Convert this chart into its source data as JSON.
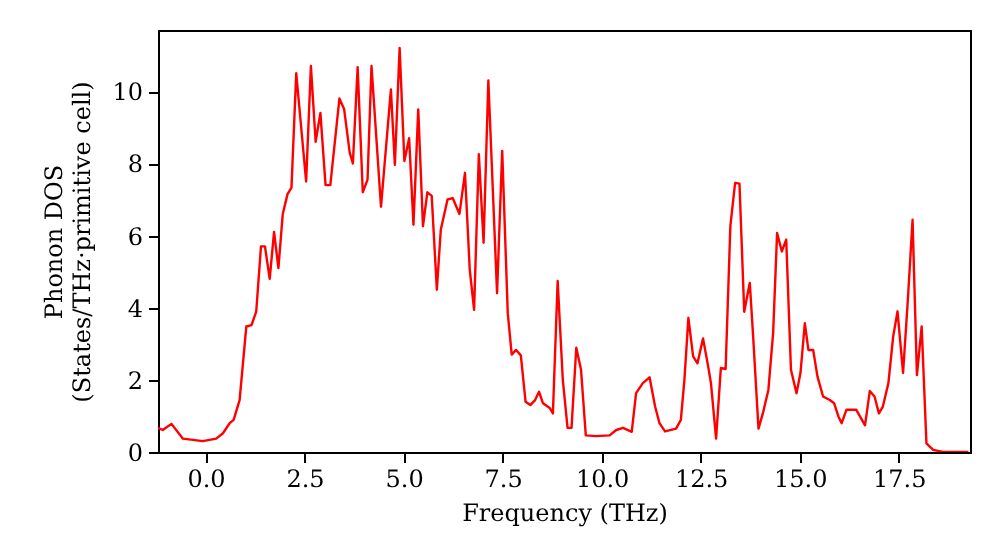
{
  "chart_data": {
    "type": "line",
    "xlabel": "Frequency (THz)",
    "ylabel": "Phonon DOS\n(States/THz·primitive cell)",
    "xlim": [
      -1.2,
      19.3
    ],
    "ylim": [
      0,
      11.7
    ],
    "xticks": [
      {
        "value": 0,
        "label": "0.0"
      },
      {
        "value": 2.5,
        "label": "2.5"
      },
      {
        "value": 5,
        "label": "5.0"
      },
      {
        "value": 7.5,
        "label": "7.5"
      },
      {
        "value": 10,
        "label": "10.0"
      },
      {
        "value": 12.5,
        "label": "12.5"
      },
      {
        "value": 15,
        "label": "15.0"
      },
      {
        "value": 17.5,
        "label": "17.5"
      }
    ],
    "yticks": [
      0,
      2,
      4,
      6,
      8,
      10
    ],
    "grid": false,
    "marker": "none",
    "line_style": "solid",
    "series": [
      {
        "color": "#ff0000",
        "x": [
          -1.2,
          -1.08,
          -0.86,
          -0.57,
          -0.07,
          0.27,
          0.44,
          0.61,
          0.71,
          0.86,
          1.03,
          1.16,
          1.28,
          1.4,
          1.5,
          1.62,
          1.73,
          1.84,
          1.95,
          2.07,
          2.17,
          2.29,
          2.54,
          2.66,
          2.78,
          2.9,
          3.03,
          3.15,
          3.38,
          3.5,
          3.64,
          3.72,
          3.84,
          3.97,
          4.09,
          4.19,
          4.43,
          4.68,
          4.78,
          4.9,
          5.02,
          5.14,
          5.25,
          5.37,
          5.49,
          5.6,
          5.71,
          5.84,
          5.94,
          6.11,
          6.24,
          6.41,
          6.55,
          6.67,
          6.78,
          6.9,
          7.02,
          7.14,
          7.36,
          7.49,
          7.63,
          7.73,
          7.84,
          7.96,
          8.08,
          8.2,
          8.32,
          8.42,
          8.52,
          8.69,
          8.77,
          8.89,
          9.02,
          9.14,
          9.24,
          9.36,
          9.48,
          9.6,
          9.86,
          10.2,
          10.37,
          10.54,
          10.76,
          10.87,
          11.04,
          11.21,
          11.35,
          11.46,
          11.6,
          11.88,
          12.0,
          12.09,
          12.19,
          12.31,
          12.42,
          12.56,
          12.69,
          12.76,
          12.89,
          13.01,
          13.13,
          13.25,
          13.37,
          13.48,
          13.6,
          13.74,
          13.82,
          13.96,
          14.07,
          14.21,
          14.33,
          14.43,
          14.55,
          14.66,
          14.78,
          14.92,
          15.02,
          15.13,
          15.22,
          15.34,
          15.45,
          15.59,
          15.76,
          15.87,
          15.98,
          16.06,
          16.18,
          16.43,
          16.65,
          16.77,
          16.89,
          17.0,
          17.1,
          17.24,
          17.36,
          17.47,
          17.61,
          17.73,
          17.85,
          17.96,
          18.08,
          18.2,
          18.37,
          18.62,
          19.26
        ],
        "values": [
          0.67,
          0.61,
          0.78,
          0.37,
          0.3,
          0.37,
          0.52,
          0.8,
          0.89,
          1.44,
          3.48,
          3.52,
          3.89,
          5.7,
          5.7,
          4.8,
          6.1,
          5.1,
          6.6,
          7.15,
          7.33,
          10.5,
          7.5,
          10.7,
          8.6,
          9.4,
          7.4,
          7.4,
          9.8,
          9.5,
          8.3,
          8.0,
          10.67,
          7.2,
          7.55,
          10.7,
          6.8,
          10.05,
          7.96,
          11.2,
          8.07,
          8.7,
          6.3,
          9.5,
          6.26,
          7.2,
          7.1,
          4.5,
          6.17,
          7.0,
          7.04,
          6.6,
          7.74,
          5.06,
          3.94,
          8.26,
          5.8,
          10.3,
          4.4,
          8.35,
          3.85,
          2.7,
          2.83,
          2.68,
          1.39,
          1.3,
          1.44,
          1.67,
          1.35,
          1.22,
          1.07,
          4.74,
          2.0,
          0.67,
          0.67,
          2.89,
          2.28,
          0.46,
          0.44,
          0.46,
          0.61,
          0.67,
          0.56,
          1.63,
          1.91,
          2.07,
          1.26,
          0.8,
          0.57,
          0.65,
          0.89,
          2.0,
          3.72,
          2.65,
          2.46,
          3.15,
          2.37,
          1.91,
          0.37,
          2.33,
          2.3,
          6.26,
          7.46,
          7.44,
          3.89,
          4.69,
          3.3,
          0.65,
          1.07,
          1.72,
          3.3,
          6.07,
          5.56,
          5.89,
          2.28,
          1.63,
          2.19,
          3.57,
          2.83,
          2.83,
          2.09,
          1.54,
          1.44,
          1.35,
          0.98,
          0.8,
          1.17,
          1.17,
          0.74,
          1.69,
          1.54,
          1.07,
          1.26,
          1.91,
          3.2,
          3.9,
          2.19,
          4.2,
          6.44,
          2.13,
          3.48,
          0.24,
          0.06,
          0,
          0
        ]
      }
    ]
  }
}
